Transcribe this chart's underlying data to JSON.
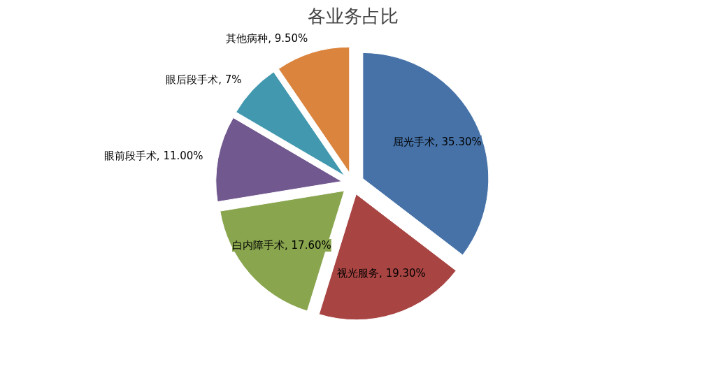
{
  "chart_data": {
    "type": "pie",
    "title": "各业务占比",
    "categories": [
      "屈光手术",
      "视光服务",
      "白内障手术",
      "眼前段手术",
      "眼后段手术",
      "其他病种"
    ],
    "values": [
      35.3,
      19.3,
      17.6,
      11.0,
      7,
      9.5
    ],
    "value_labels": [
      "35.30%",
      "19.30%",
      "17.60%",
      "11.00%",
      "7%",
      "9.50%"
    ],
    "colors": [
      "#4672a8",
      "#a84442",
      "#89a54e",
      "#71588f",
      "#4198af",
      "#db843d"
    ]
  }
}
